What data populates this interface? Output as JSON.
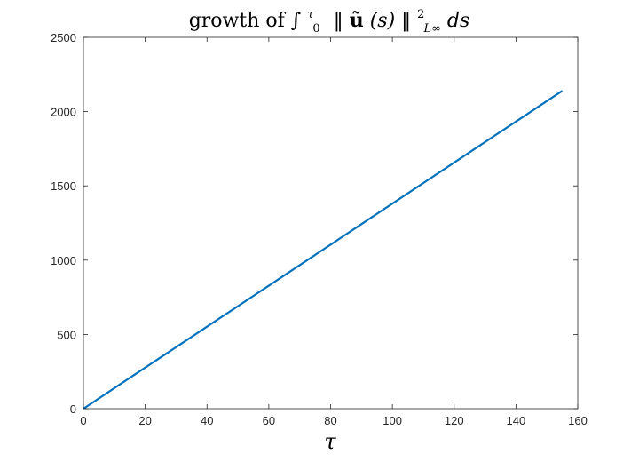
{
  "chart_data": {
    "type": "line",
    "title": {
      "prefix": "growth of ",
      "integral": "∫",
      "upper_limit": "τ",
      "lower_limit": "0",
      "norm_open": "‖",
      "vector": "ũ",
      "arg": "(s)",
      "norm_close": "‖",
      "exponent": "2",
      "norm_space": "L∞",
      "differential": "ds"
    },
    "xlabel": "τ",
    "ylabel": "",
    "xlim": [
      0,
      160
    ],
    "ylim": [
      0,
      2500
    ],
    "xticks": [
      0,
      20,
      40,
      60,
      80,
      100,
      120,
      140,
      160
    ],
    "yticks": [
      0,
      500,
      1000,
      1500,
      2000,
      2500
    ],
    "grid": false,
    "series": [
      {
        "color": "#0072bd",
        "x": [
          0,
          155
        ],
        "y": [
          0,
          2140
        ]
      }
    ]
  }
}
